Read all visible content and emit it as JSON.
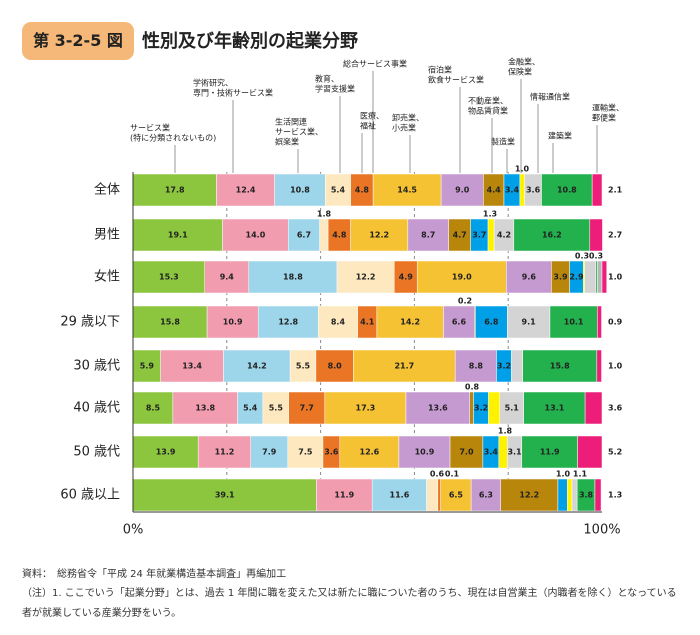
{
  "header": {
    "figure_number": "第 3-2-5 図",
    "title": "性別及び年齢別の起業分野"
  },
  "footer": {
    "source": "資料：　総務省令「平成 24 年就業構造基本調査」再編加工",
    "note": "（注）1. ここでいう「起業分野」とは、過去 1 年間に職を変えた又は新たに職についた者のうち、現在は自営業主（内職者を除く）となっている者が就業している産業分野をいう。"
  },
  "chart_data": {
    "type": "bar",
    "orientation": "horizontal",
    "stacked": true,
    "xlim": [
      0,
      100
    ],
    "xticks": [
      "0%",
      "100%"
    ],
    "grid": "vertical dashed",
    "categories": [
      "全体",
      "男性",
      "女性",
      "29 歳以下",
      "30 歳代",
      "40 歳代",
      "50 歳代",
      "60 歳以上"
    ],
    "series": [
      {
        "name": "サービス業（特に分類されないもの）",
        "color": "#8cc63f",
        "values": [
          17.8,
          19.1,
          15.3,
          15.8,
          5.9,
          8.5,
          13.9,
          39.1
        ]
      },
      {
        "name": "学術研究、専門・技術サービス業",
        "color": "#f29cb0",
        "values": [
          12.4,
          14.0,
          9.4,
          10.9,
          13.4,
          13.8,
          11.2,
          11.9
        ]
      },
      {
        "name": "生活関連サービス業、娯楽業",
        "color": "#9dd5ea",
        "values": [
          10.8,
          6.7,
          18.8,
          12.8,
          14.2,
          5.4,
          7.9,
          11.6
        ]
      },
      {
        "name": "教育、学習支援業",
        "color": "#fde8c0",
        "values": [
          5.4,
          1.8,
          12.2,
          8.4,
          5.5,
          5.5,
          7.5,
          2.4
        ]
      },
      {
        "name": "医療、福祉",
        "color": "#ea7524",
        "values": [
          4.8,
          4.8,
          4.9,
          4.1,
          8.0,
          7.7,
          3.6,
          0.6
        ]
      },
      {
        "name": "総合サービス事業",
        "color": "#f5c233",
        "values": [
          14.5,
          12.2,
          19.0,
          14.2,
          21.7,
          17.3,
          12.6,
          6.5
        ]
      },
      {
        "name": "卸売業、小売業",
        "color": "#c59ad0",
        "values": [
          9.0,
          8.7,
          9.6,
          6.6,
          8.8,
          13.6,
          10.9,
          6.3
        ]
      },
      {
        "name": "宿泊業、飲食サービス業",
        "color": "#b8860b",
        "values": [
          4.4,
          4.7,
          3.9,
          0.2,
          0.0,
          0.8,
          7.0,
          12.2
        ]
      },
      {
        "name": "不動産業、物品賃貸業",
        "color": "#00a0e9",
        "values": [
          3.4,
          3.7,
          2.9,
          6.8,
          3.2,
          3.2,
          3.4,
          2.0
        ]
      },
      {
        "name": "製造業",
        "color": "#fff200",
        "values": [
          1.0,
          1.3,
          0.3,
          0.0,
          0.0,
          2.4,
          1.8,
          1.0
        ]
      },
      {
        "name": "金融業、保険業",
        "color": "#d4d4d4",
        "values": [
          3.6,
          4.2,
          2.4,
          9.1,
          2.4,
          5.1,
          3.1,
          1.1
        ]
      },
      {
        "name": "情報通信業",
        "color": "#22b14c",
        "values": [
          10.8,
          16.2,
          0.3,
          10.1,
          15.8,
          13.1,
          11.9,
          3.8
        ]
      },
      {
        "name": "建築業",
        "color": "#b5b5b5",
        "values": [
          0.0,
          0.0,
          1.0,
          0.0,
          0.0,
          0.0,
          0.0,
          0.0
        ]
      },
      {
        "name": "運輸業、郵便業",
        "color": "#ec1e79",
        "values": [
          2.1,
          2.7,
          1.0,
          0.9,
          1.0,
          3.6,
          5.2,
          1.3
        ]
      }
    ],
    "top_labels": [
      {
        "text": "サービス業\n(特に分類されないもの)",
        "series": 0
      },
      {
        "text": "学術研究、\n専門・技術サービス業",
        "series": 1
      },
      {
        "text": "生活関連\nサービス業、\n娯楽業",
        "series": 2
      },
      {
        "text": "教育、\n学習支援業",
        "series": 3
      },
      {
        "text": "医療、\n福祉",
        "series": 4
      },
      {
        "text": "総合サービス事業",
        "series": 5
      },
      {
        "text": "卸売業、\n小売業",
        "series": 5
      },
      {
        "text": "宿泊業\n飲食サービス業",
        "series": 6
      },
      {
        "text": "不動産業、\n物品賃貸業",
        "series": 7
      },
      {
        "text": "製造業",
        "series": 8
      },
      {
        "text": "金融業、\n保険業",
        "series": 9
      },
      {
        "text": "情報通信業",
        "series": 10
      },
      {
        "text": "建築業",
        "series": 11
      },
      {
        "text": "運輸業、\n郵便業",
        "series": 13
      }
    ],
    "small_value_labels": [
      {
        "row": 0,
        "text": "1.0"
      },
      {
        "row": 1,
        "text": "1.8"
      },
      {
        "row": 1,
        "text": "1.3"
      },
      {
        "row": 2,
        "text": "0.3"
      },
      {
        "row": 2,
        "text": "0.3"
      },
      {
        "row": 3,
        "text": "0.2"
      },
      {
        "row": 5,
        "text": "0.8"
      },
      {
        "row": 6,
        "text": "1.8"
      },
      {
        "row": 7,
        "text": "0.6"
      },
      {
        "row": 7,
        "text": "0.1"
      },
      {
        "row": 7,
        "text": "1.0"
      },
      {
        "row": 7,
        "text": "1.1"
      }
    ]
  }
}
